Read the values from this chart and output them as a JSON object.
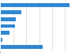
{
  "values": [
    270,
    80,
    60,
    55,
    35,
    5,
    165
  ],
  "bar_color": "#2f86d1",
  "background_color": "#ffffff",
  "grid_color": "#cccccc",
  "xlim": [
    0,
    300
  ],
  "bar_height": 0.55,
  "figwidth": 1.0,
  "figheight": 0.71,
  "dpi": 100
}
